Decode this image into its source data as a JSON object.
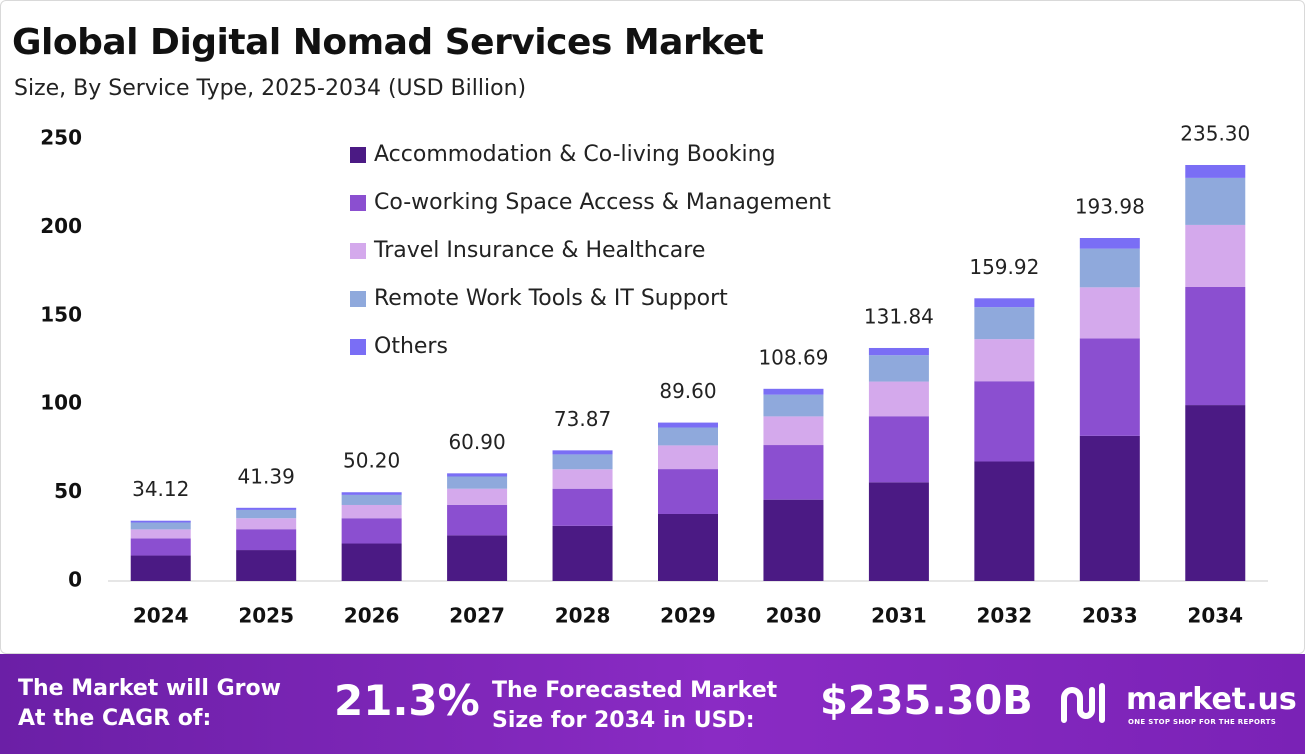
{
  "chart_data": {
    "type": "stacked-bar",
    "title": "Global Digital Nomad Services Market",
    "subtitle": "Size, By Service Type, 2025-2034 (USD Billion)",
    "categories": [
      "2024",
      "2025",
      "2026",
      "2027",
      "2028",
      "2029",
      "2030",
      "2031",
      "2032",
      "2033",
      "2034"
    ],
    "series": [
      {
        "name": "Accommodation & Co-living Booking",
        "color": "#4b1a84",
        "values": [
          14.4,
          17.5,
          21.2,
          25.8,
          31.2,
          37.9,
          46.0,
          55.8,
          67.6,
          82.1,
          99.5
        ]
      },
      {
        "name": "Co-working Space Access & Management",
        "color": "#8b4fd0",
        "values": [
          9.7,
          11.8,
          14.3,
          17.3,
          21.0,
          25.4,
          30.9,
          37.4,
          45.4,
          55.1,
          66.8
        ]
      },
      {
        "name": "Travel Insurance & Healthcare",
        "color": "#d4a9ec",
        "values": [
          5.1,
          6.2,
          7.5,
          9.1,
          11.0,
          13.4,
          16.2,
          19.6,
          23.8,
          28.9,
          35.1
        ]
      },
      {
        "name": "Remote Work Tools & IT Support",
        "color": "#8fa9dc",
        "values": [
          3.9,
          4.7,
          5.7,
          6.9,
          8.4,
          10.1,
          12.3,
          14.9,
          18.1,
          21.9,
          26.6
        ]
      },
      {
        "name": "Others",
        "color": "#7a6ef5",
        "values": [
          1.0,
          1.2,
          1.5,
          1.8,
          2.3,
          2.8,
          3.3,
          4.1,
          5.0,
          6.0,
          7.3
        ]
      }
    ],
    "totals": {
      "values": [
        34.12,
        41.39,
        50.2,
        60.9,
        73.87,
        89.6,
        108.69,
        131.84,
        159.92,
        193.98,
        235.3
      ],
      "value_labels": [
        "34.12",
        "41.39",
        "50.20",
        "60.90",
        "73.87",
        "89.60",
        "108.69",
        "131.84",
        "159.92",
        "193.98",
        "235.30"
      ]
    },
    "ylim": [
      0,
      250
    ],
    "yticks": [
      0,
      50,
      100,
      150,
      200,
      250
    ],
    "grid": false,
    "legend": "top-left"
  },
  "footer": {
    "cagr_text": "The Market will Grow At the CAGR of:",
    "cagr_value": "21.3%",
    "forecast_text": "The Forecasted Market Size for 2034 in USD:",
    "forecast_value": "$235.30B",
    "brand": "market.us",
    "tagline": "ONE STOP SHOP FOR THE REPORTS"
  }
}
